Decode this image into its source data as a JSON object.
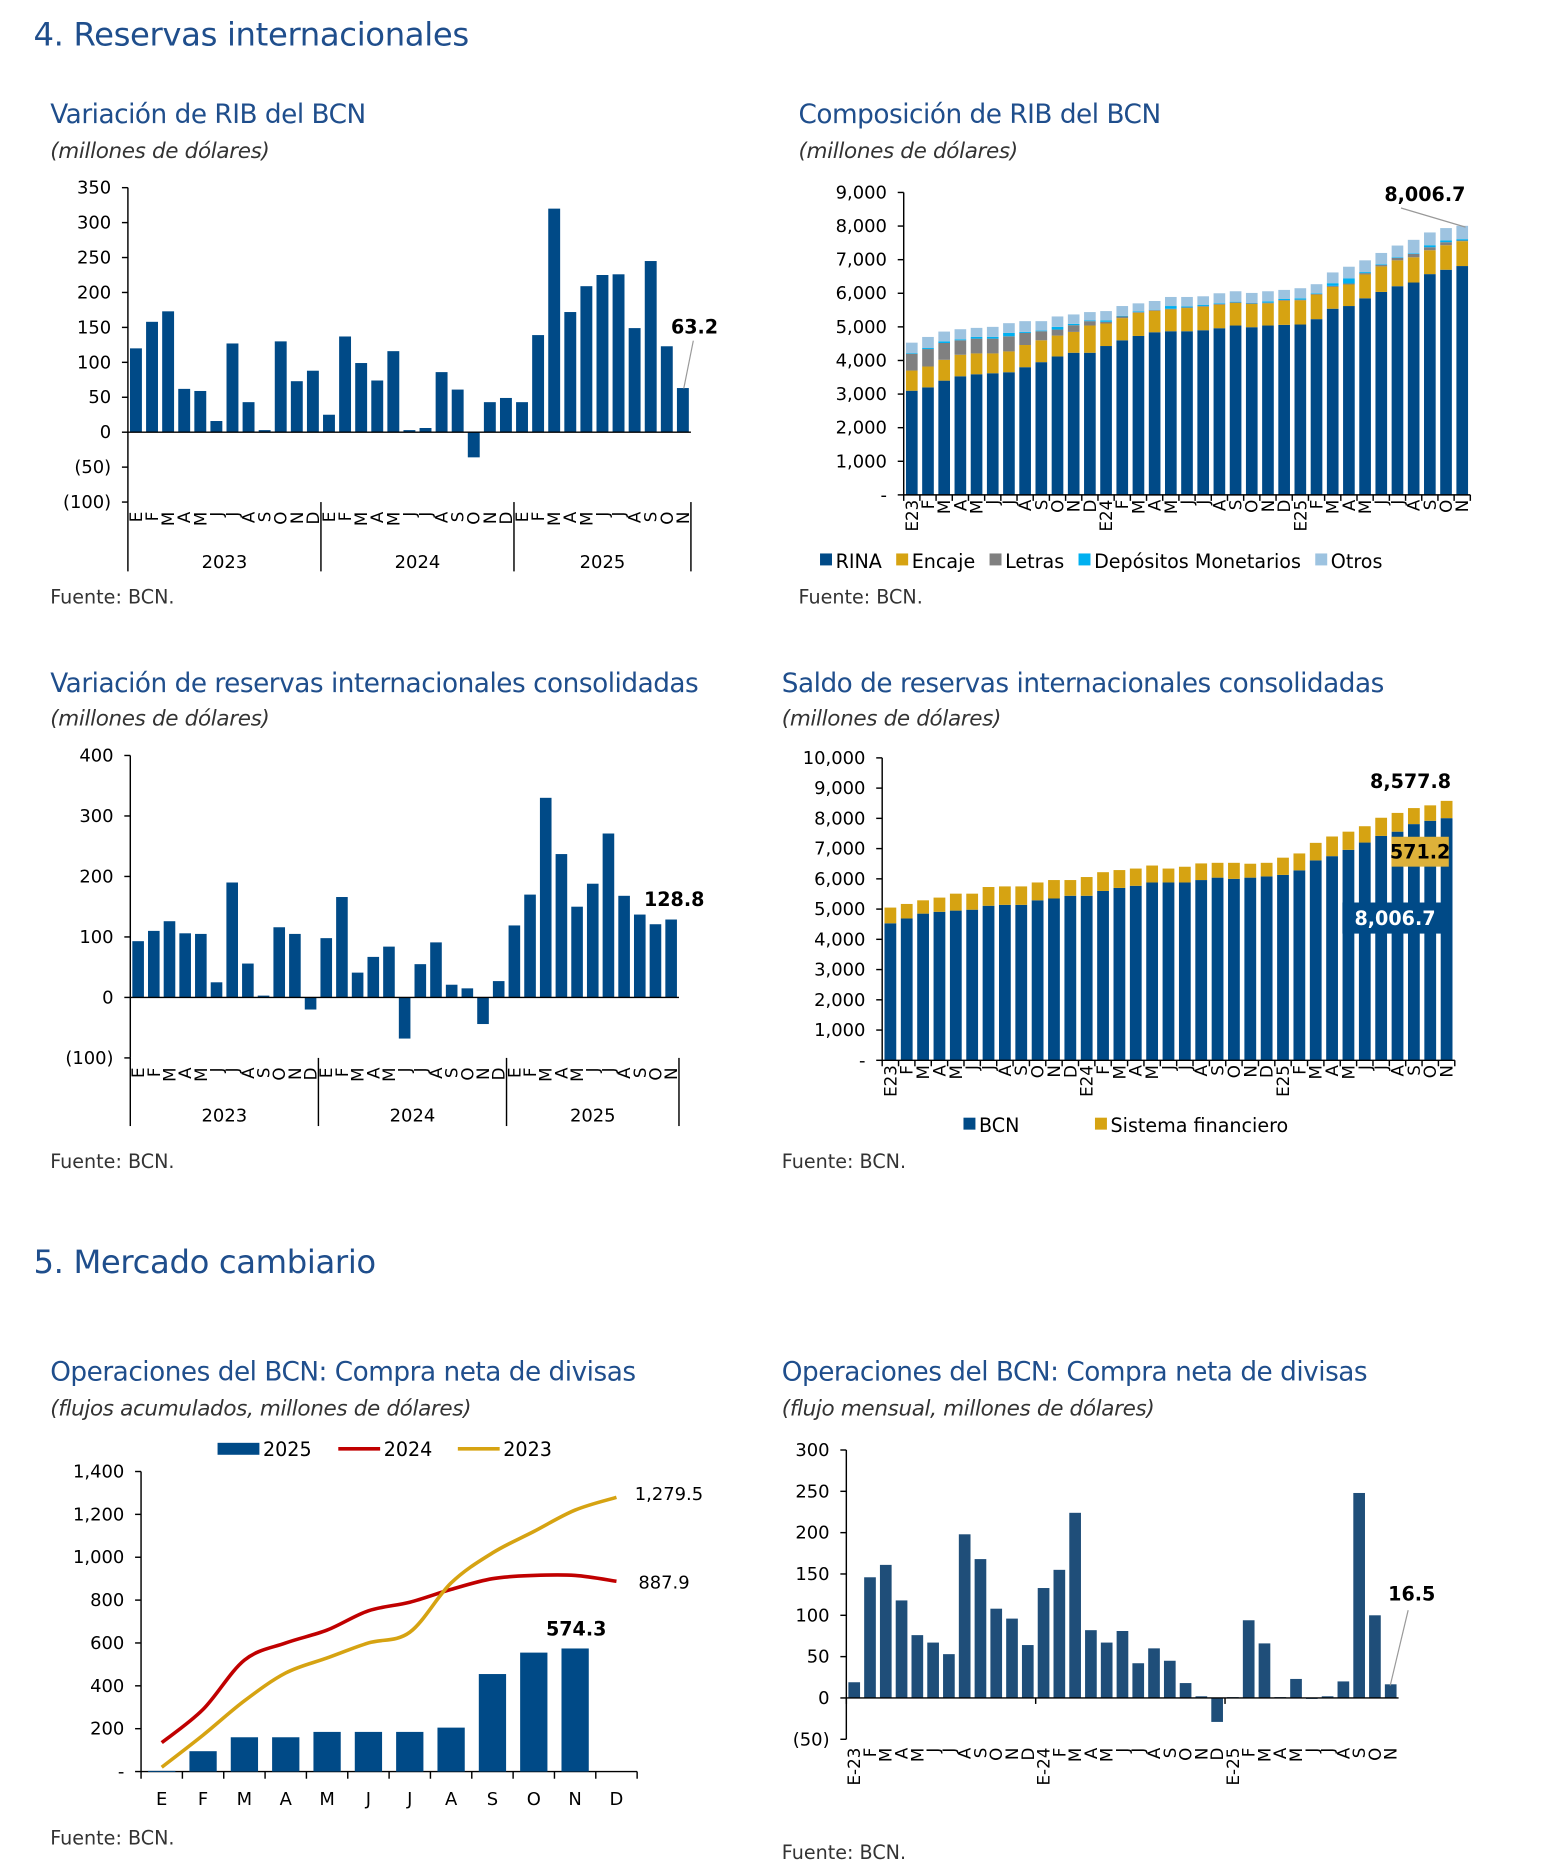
{
  "sections": {
    "s4": "4.   Reservas internacionales",
    "s5": "5.   Mercado cambiario"
  },
  "colors": {
    "navy": "#004a87",
    "navy_dark": "#1f4e79",
    "gold": "#d6a312",
    "gray": "#808080",
    "cyan": "#00b0f0",
    "light_blue": "#9dc3e0",
    "red": "#c00000",
    "title_blue": "#1f4e8c"
  },
  "charts": [
    {
      "type": "bar",
      "title": "Variación de RIB del BCN",
      "subtitle": "(millones de dólares)",
      "source": "Fuente: BCN.",
      "ylim": [
        -100,
        350
      ],
      "yticks": [
        {
          "v": 350,
          "label": "350"
        },
        {
          "v": 300,
          "label": "300"
        },
        {
          "v": 250,
          "label": "250"
        },
        {
          "v": 200,
          "label": "200"
        },
        {
          "v": 150,
          "label": "150"
        },
        {
          "v": 100,
          "label": "100"
        },
        {
          "v": 50,
          "label": "50"
        },
        {
          "v": 0,
          "label": "0"
        },
        {
          "v": -50,
          "label": "(50)"
        },
        {
          "v": -100,
          "label": "(100)"
        }
      ],
      "x_labels": [
        "E",
        "F",
        "M",
        "A",
        "M",
        "J",
        "J",
        "A",
        "S",
        "O",
        "N",
        "D",
        "E",
        "F",
        "M",
        "A",
        "M",
        "J",
        "J",
        "A",
        "S",
        "O",
        "N",
        "D",
        "E",
        "F",
        "M",
        "A",
        "M",
        "J",
        "J",
        "A",
        "S",
        "O",
        "N"
      ],
      "year_groups": [
        {
          "label": "2023",
          "n": 12
        },
        {
          "label": "2024",
          "n": 12
        },
        {
          "label": "2025",
          "n": 11
        }
      ],
      "values": [
        120,
        158,
        173,
        62,
        59,
        16,
        127,
        43,
        3,
        130,
        73,
        88,
        25,
        137,
        99,
        74,
        116,
        3,
        6,
        86,
        61,
        -36,
        43,
        49,
        43,
        139,
        320,
        172,
        209,
        225,
        226,
        149,
        245,
        123,
        63.2
      ],
      "annotation": "63.2"
    },
    {
      "type": "stacked-bar",
      "title": "Composición de RIB del BCN",
      "subtitle": " (millones de dólares)",
      "source": "Fuente: BCN.",
      "ylim": [
        0,
        9000
      ],
      "yticks": [
        {
          "v": 9000,
          "label": "9,000"
        },
        {
          "v": 8000,
          "label": "8,000"
        },
        {
          "v": 7000,
          "label": "7,000"
        },
        {
          "v": 6000,
          "label": "6,000"
        },
        {
          "v": 5000,
          "label": "5,000"
        },
        {
          "v": 4000,
          "label": "4,000"
        },
        {
          "v": 3000,
          "label": "3,000"
        },
        {
          "v": 2000,
          "label": "2,000"
        },
        {
          "v": 1000,
          "label": "1,000"
        },
        {
          "v": 0,
          "label": "-"
        }
      ],
      "x_labels": [
        "E23",
        "F",
        "M",
        "A",
        "M",
        "J",
        "J",
        "A",
        "S",
        "O",
        "N",
        "D",
        "E24",
        "F",
        "M",
        "A",
        "M",
        "J",
        "J",
        "A",
        "S",
        "O",
        "N",
        "D",
        "E25",
        "F",
        "M",
        "A",
        "M",
        "J",
        "J",
        "A",
        "S",
        "O",
        "N"
      ],
      "series": [
        {
          "name": "RINA",
          "color": "#004a87",
          "values": [
            3100,
            3200,
            3400,
            3530,
            3590,
            3620,
            3650,
            3800,
            3950,
            4120,
            4230,
            4230,
            4430,
            4600,
            4730,
            4840,
            4870,
            4870,
            4900,
            4960,
            5040,
            4990,
            5040,
            5060,
            5070,
            5230,
            5540,
            5620,
            5850,
            6040,
            6210,
            6320,
            6570,
            6700,
            6810
          ]
        },
        {
          "name": "Encaje",
          "color": "#d6a312",
          "values": [
            600,
            620,
            620,
            640,
            620,
            590,
            620,
            660,
            650,
            620,
            620,
            810,
            670,
            660,
            690,
            640,
            650,
            690,
            700,
            700,
            670,
            690,
            660,
            720,
            720,
            730,
            650,
            640,
            710,
            760,
            770,
            750,
            710,
            730,
            740
          ]
        },
        {
          "name": "Letras",
          "color": "#808080",
          "values": [
            500,
            520,
            500,
            430,
            440,
            440,
            450,
            360,
            270,
            180,
            200,
            130,
            50,
            50,
            20,
            20,
            20,
            20,
            20,
            20,
            20,
            20,
            20,
            20,
            20,
            20,
            30,
            30,
            40,
            40,
            70,
            100,
            90,
            90,
            20
          ]
        },
        {
          "name": "Depósitos Monetarios",
          "color": "#00b0f0",
          "values": [
            20,
            30,
            50,
            30,
            50,
            50,
            100,
            30,
            20,
            80,
            40,
            20,
            40,
            20,
            20,
            10,
            80,
            30,
            30,
            20,
            20,
            10,
            40,
            30,
            40,
            20,
            80,
            150,
            30,
            20,
            20,
            20,
            60,
            50,
            40
          ]
        },
        {
          "name": "Otros",
          "color": "#9dc3e0",
          "values": [
            310,
            330,
            290,
            300,
            270,
            300,
            290,
            320,
            280,
            310,
            280,
            250,
            280,
            290,
            240,
            260,
            270,
            280,
            260,
            300,
            310,
            300,
            300,
            270,
            300,
            270,
            320,
            350,
            350,
            340,
            350,
            400,
            380,
            370,
            397
          ]
        }
      ],
      "annotation": "8,006.7",
      "legend": "bottom"
    },
    {
      "type": "bar",
      "title": "Variación de reservas internacionales consolidadas",
      "subtitle": "(millones de dólares)",
      "source": "Fuente: BCN.",
      "ylim": [
        -100,
        400
      ],
      "yticks": [
        {
          "v": 400,
          "label": "400"
        },
        {
          "v": 300,
          "label": "300"
        },
        {
          "v": 200,
          "label": "200"
        },
        {
          "v": 100,
          "label": "100"
        },
        {
          "v": 0,
          "label": "0"
        },
        {
          "v": -100,
          "label": "(100)"
        }
      ],
      "x_labels": [
        "E",
        "F",
        "M",
        "A",
        "M",
        "J",
        "J",
        "A",
        "S",
        "O",
        "N",
        "D",
        "E",
        "F",
        "M",
        "A",
        "M",
        "J",
        "J",
        "A",
        "S",
        "O",
        "N",
        "D",
        "E",
        "F",
        "M",
        "A",
        "M",
        "J",
        "J",
        "A",
        "S",
        "O",
        "N"
      ],
      "year_groups": [
        {
          "label": "2023",
          "n": 12
        },
        {
          "label": "2024",
          "n": 12
        },
        {
          "label": "2025",
          "n": 11
        }
      ],
      "values": [
        93,
        110,
        126,
        106,
        105,
        25,
        190,
        56,
        3,
        116,
        105,
        -20,
        98,
        166,
        41,
        67,
        84,
        -68,
        55,
        91,
        21,
        15,
        -44,
        27,
        119,
        170,
        330,
        237,
        150,
        188,
        271,
        168,
        137,
        121,
        128.8
      ],
      "annotation": "128.8"
    },
    {
      "type": "stacked-bar",
      "title": "Saldo de reservas internacionales consolidadas",
      "subtitle": "(millones de dólares)",
      "source": "Fuente: BCN.",
      "ylim": [
        0,
        10000
      ],
      "yticks": [
        {
          "v": 10000,
          "label": "10,000"
        },
        {
          "v": 9000,
          "label": "9,000"
        },
        {
          "v": 8000,
          "label": "8,000"
        },
        {
          "v": 7000,
          "label": "7,000"
        },
        {
          "v": 6000,
          "label": "6,000"
        },
        {
          "v": 5000,
          "label": "5,000"
        },
        {
          "v": 4000,
          "label": "4,000"
        },
        {
          "v": 3000,
          "label": "3,000"
        },
        {
          "v": 2000,
          "label": "2,000"
        },
        {
          "v": 1000,
          "label": "1,000"
        },
        {
          "v": 0,
          "label": "-"
        }
      ],
      "x_labels": [
        "E23",
        "F",
        "M",
        "A",
        "M",
        "J",
        "J",
        "A",
        "S",
        "O",
        "N",
        "D",
        "E24",
        "F",
        "M",
        "A",
        "M",
        "J",
        "J",
        "A",
        "S",
        "O",
        "N",
        "D",
        "E25",
        "F",
        "M",
        "A",
        "M",
        "J",
        "J",
        "A",
        "S",
        "O",
        "N"
      ],
      "series": [
        {
          "name": "BCN",
          "color": "#004a87",
          "values": [
            4530,
            4690,
            4850,
            4910,
            4950,
            4980,
            5110,
            5140,
            5140,
            5290,
            5350,
            5440,
            5440,
            5600,
            5700,
            5770,
            5880,
            5880,
            5880,
            5960,
            6040,
            6000,
            6040,
            6080,
            6130,
            6280,
            6610,
            6750,
            6960,
            7200,
            7420,
            7560,
            7810,
            7920,
            8006.7
          ]
        },
        {
          "name": "Sistema financiero",
          "color": "#d6a312",
          "values": [
            520,
            480,
            440,
            470,
            560,
            530,
            620,
            610,
            610,
            590,
            610,
            520,
            620,
            620,
            590,
            570,
            560,
            460,
            520,
            550,
            490,
            530,
            460,
            450,
            570,
            560,
            580,
            650,
            600,
            540,
            600,
            620,
            530,
            510,
            571.2
          ]
        }
      ],
      "annotation": "8,577.8",
      "box_labels": {
        "sistema": "571.2",
        "bcn": "8,006.7"
      },
      "legend": "bottom"
    },
    {
      "type": "bar+line",
      "title": "Operaciones del BCN: Compra neta de divisas",
      "subtitle": " (flujos acumulados, millones de dólares)",
      "source": "Fuente: BCN.",
      "ylim": [
        0,
        1400
      ],
      "yticks": [
        {
          "v": 1400,
          "label": "1,400"
        },
        {
          "v": 1200,
          "label": "1,200"
        },
        {
          "v": 1000,
          "label": "1,000"
        },
        {
          "v": 800,
          "label": "800"
        },
        {
          "v": 600,
          "label": "600"
        },
        {
          "v": 400,
          "label": "400"
        },
        {
          "v": 200,
          "label": "200"
        },
        {
          "v": 0,
          "label": "-"
        }
      ],
      "categories": [
        "E",
        "F",
        "M",
        "A",
        "M",
        "J",
        "J",
        "A",
        "S",
        "O",
        "N",
        "D"
      ],
      "series": [
        {
          "name": "2025",
          "kind": "bar",
          "color": "#004a87",
          "values": [
            3,
            95,
            160,
            160,
            185,
            185,
            185,
            205,
            455,
            555,
            574.3
          ]
        },
        {
          "name": "2024",
          "kind": "line",
          "color": "#c00000",
          "values": [
            135,
            290,
            520,
            600,
            660,
            750,
            790,
            850,
            900,
            915,
            915,
            887.9
          ]
        },
        {
          "name": "2023",
          "kind": "line",
          "color": "#d6a312",
          "values": [
            20,
            170,
            330,
            460,
            530,
            600,
            650,
            880,
            1020,
            1120,
            1220,
            1279.5
          ]
        }
      ],
      "annotations": {
        "bar_last": "574.3",
        "line_2024_last": "887.9",
        "line_2023_last": "1,279.5"
      },
      "legend": "top"
    },
    {
      "type": "bar",
      "title": "Operaciones del BCN: Compra neta de divisas",
      "subtitle": " (flujo mensual, millones de dólares)",
      "source": "Fuente: BCN.",
      "ylim": [
        -50,
        300
      ],
      "yticks": [
        {
          "v": 300,
          "label": "300"
        },
        {
          "v": 250,
          "label": "250"
        },
        {
          "v": 200,
          "label": "200"
        },
        {
          "v": 150,
          "label": "150"
        },
        {
          "v": 100,
          "label": "100"
        },
        {
          "v": 50,
          "label": "50"
        },
        {
          "v": 0,
          "label": "0"
        },
        {
          "v": -50,
          "label": "(50)"
        }
      ],
      "x_labels": [
        "E-23",
        "F",
        "M",
        "A",
        "M",
        "J",
        "J",
        "A",
        "S",
        "O",
        "N",
        "D",
        "E-24",
        "F",
        "M",
        "A",
        "M",
        "J",
        "J",
        "A",
        "S",
        "O",
        "N",
        "D",
        "E-25",
        "F",
        "M",
        "A",
        "M",
        "J",
        "J",
        "A",
        "S",
        "O",
        "N"
      ],
      "values": [
        19,
        146,
        161,
        118,
        76,
        67,
        53,
        198,
        168,
        108,
        96,
        64,
        133,
        155,
        224,
        82,
        67,
        81,
        42,
        60,
        45,
        18,
        2,
        -29,
        1,
        94,
        66,
        1,
        23,
        0,
        2,
        20,
        248,
        100,
        16.5
      ],
      "annotation": "16.5"
    }
  ]
}
